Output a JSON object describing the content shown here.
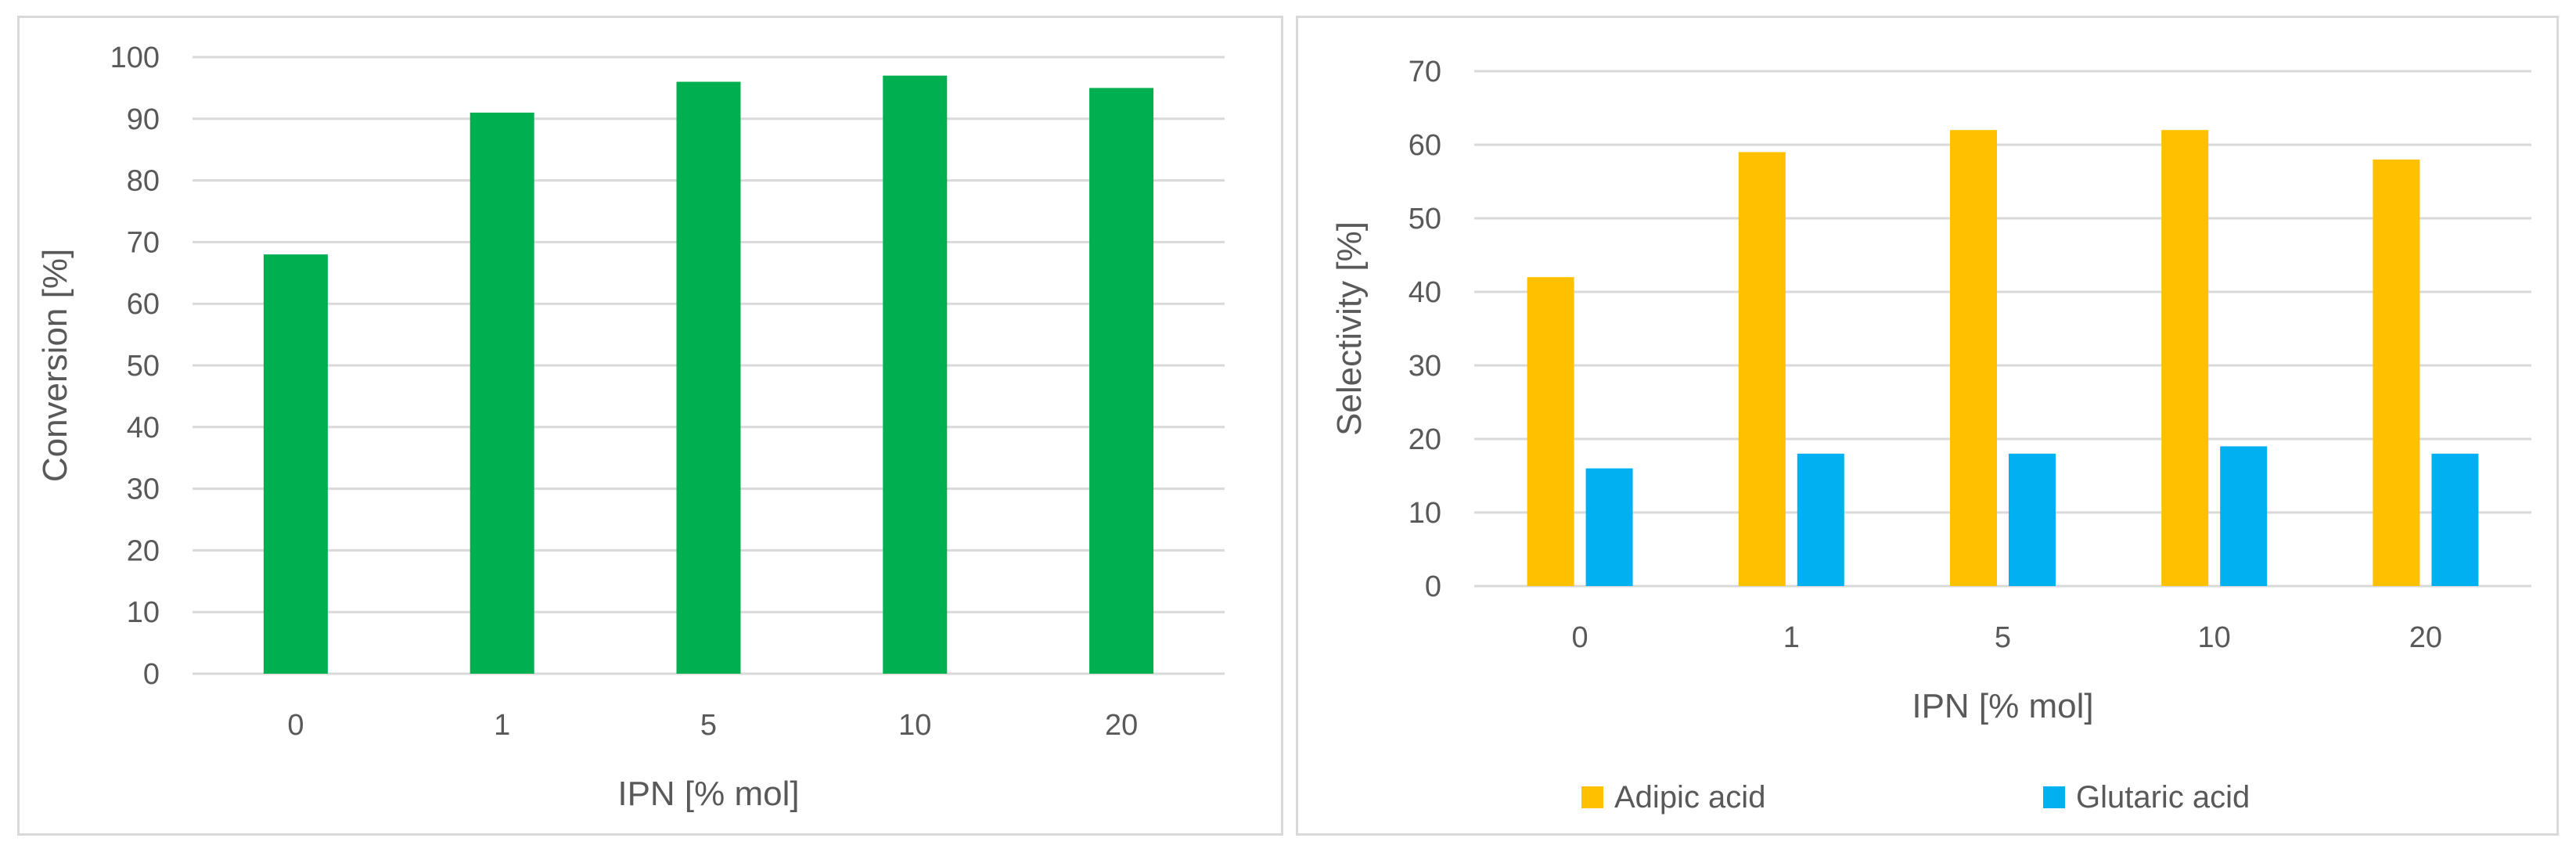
{
  "chart_data": [
    {
      "type": "bar",
      "categories": [
        "0",
        "1",
        "5",
        "10",
        "20"
      ],
      "series": [
        {
          "values": [
            68,
            91,
            96,
            97,
            95
          ],
          "color": "#00b050"
        }
      ],
      "title": "",
      "xlabel": "IPN [% mol]",
      "ylabel": "Conversion [%]",
      "ylim": [
        0,
        100
      ],
      "yticks": [
        0,
        10,
        20,
        30,
        40,
        50,
        60,
        70,
        80,
        90,
        100
      ],
      "grid": true,
      "legend": "none"
    },
    {
      "type": "bar",
      "categories": [
        "0",
        "1",
        "5",
        "10",
        "20"
      ],
      "series": [
        {
          "name": "Adipic acid",
          "values": [
            42,
            59,
            62,
            62,
            58
          ],
          "color": "#ffc000"
        },
        {
          "name": "Glutaric acid",
          "values": [
            16,
            18,
            18,
            19,
            18
          ],
          "color": "#00b0f0"
        }
      ],
      "title": "",
      "xlabel": "IPN [% mol]",
      "ylabel": "Selectivity [%]",
      "ylim": [
        0,
        70
      ],
      "yticks": [
        0,
        10,
        20,
        30,
        40,
        50,
        60,
        70
      ],
      "grid": true,
      "legend": "bottom"
    }
  ]
}
